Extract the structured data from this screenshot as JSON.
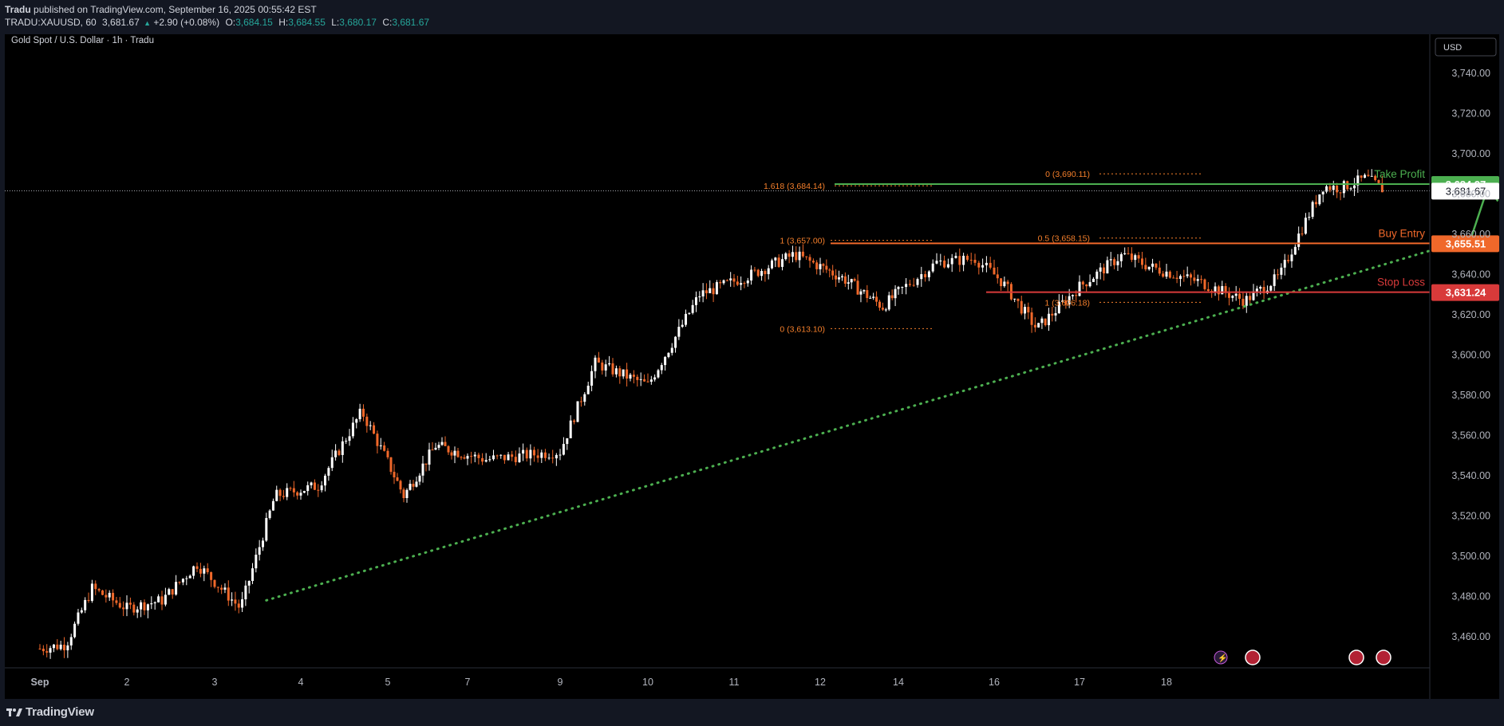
{
  "header": {
    "publisher": "Tradu",
    "published_text": "published on TradingView.com, September 16, 2025 00:55:42 EST",
    "symbol_line": "TRADU:XAUUSD, 60",
    "last": "3,681.67",
    "change": "+2.90 (+0.08%)",
    "o_label": "O:",
    "o": "3,684.15",
    "h_label": "H:",
    "h": "3,684.55",
    "l_label": "L:",
    "l": "3,680.17",
    "c_label": "C:",
    "c": "3,681.67"
  },
  "chart_title": "Gold Spot / U.S. Dollar · 1h · Tradu",
  "currency": "USD",
  "footer": {
    "brand": "TradingView"
  },
  "colors": {
    "up": "#ffffff",
    "down": "#f0682a",
    "fib": "#f57f2b",
    "trend": "#4caf50",
    "tp": "#4caf50",
    "entry": "#f0682a",
    "sl": "#d83a3a",
    "axis_text": "#b2b5be"
  },
  "icons": [
    "lightning-icon",
    "us-flag-icon"
  ],
  "chart_data": {
    "type": "candlestick",
    "symbol": "TRADU:XAUUSD",
    "timeframe": "1h",
    "x_labels": [
      "Sep",
      "2",
      "3",
      "4",
      "5",
      "7",
      "9",
      "10",
      "11",
      "12",
      "14",
      "16",
      "17",
      "18"
    ],
    "y_ticks": [
      3460,
      3480,
      3500,
      3520,
      3540,
      3560,
      3580,
      3600,
      3620,
      3640,
      3660,
      3680,
      3700,
      3720,
      3740
    ],
    "y_tick_labels": [
      "3,460.00",
      "3,480.00",
      "3,500.00",
      "3,520.00",
      "3,540.00",
      "3,560.00",
      "3,580.00",
      "3,600.00",
      "3,620.00",
      "3,640.00",
      "3,660.00",
      "3,680.00",
      "3,700.00",
      "3,720.00",
      "3,740.00"
    ],
    "ylim": [
      3450,
      3748
    ],
    "price_path": [
      [
        0,
        3454
      ],
      [
        0.3,
        3456
      ],
      [
        0.6,
        3484
      ],
      [
        1.0,
        3474
      ],
      [
        1.4,
        3478
      ],
      [
        1.8,
        3496
      ],
      [
        2.3,
        3474
      ],
      [
        2.7,
        3530
      ],
      [
        3.2,
        3535
      ],
      [
        3.7,
        3572
      ],
      [
        4.2,
        3530
      ],
      [
        4.6,
        3555
      ],
      [
        5.2,
        3548
      ],
      [
        6.0,
        3552
      ],
      [
        6.4,
        3596
      ],
      [
        7.0,
        3585
      ],
      [
        7.6,
        3630
      ],
      [
        8.2,
        3640
      ],
      [
        8.7,
        3650
      ],
      [
        9.3,
        3638
      ],
      [
        9.8,
        3624
      ],
      [
        10.4,
        3646
      ],
      [
        10.8,
        3648
      ],
      [
        11.1,
        3636
      ],
      [
        11.5,
        3613
      ],
      [
        12.0,
        3634
      ],
      [
        12.5,
        3650
      ],
      [
        12.8,
        3644
      ],
      [
        13.4,
        3636
      ],
      [
        13.9,
        3627
      ],
      [
        14.3,
        3639
      ],
      [
        14.5,
        3658
      ],
      [
        14.8,
        3684
      ],
      [
        15.0,
        3683
      ],
      [
        15.3,
        3688
      ],
      [
        15.5,
        3682
      ]
    ],
    "last_price": 3681.67,
    "last_price_label": "3,681.67",
    "levels": [
      {
        "name": "Take Profit",
        "value": 3684.97,
        "label": "3,684.97",
        "color": "#4caf50"
      },
      {
        "name": "Buy Entry",
        "value": 3655.51,
        "label": "3,655.51",
        "color": "#f0682a"
      },
      {
        "name": "Stop Loss",
        "value": 3631.24,
        "label": "3,631.24",
        "color": "#d83a3a"
      }
    ],
    "fib_labels": [
      {
        "text": "1.618 (3,684.14)",
        "value": 3684.14
      },
      {
        "text": "1 (3,657.00)",
        "value": 3657.0
      },
      {
        "text": "0 (3,613.10)",
        "value": 3613.1
      },
      {
        "text": "0 (3,690.11)",
        "value": 3690.11
      },
      {
        "text": "0.5 (3,658.15)",
        "value": 3658.15
      },
      {
        "text": "1 (3,626.18)",
        "value": 3626.18
      }
    ],
    "trendline": {
      "from": [
        2.6,
        3478
      ],
      "to": [
        16.5,
        3658
      ],
      "style": "dotted"
    },
    "projection_arrow": {
      "from": [
        16.5,
        3658
      ],
      "to": [
        16.7,
        3684
      ]
    },
    "grid": false,
    "legend": "none"
  }
}
